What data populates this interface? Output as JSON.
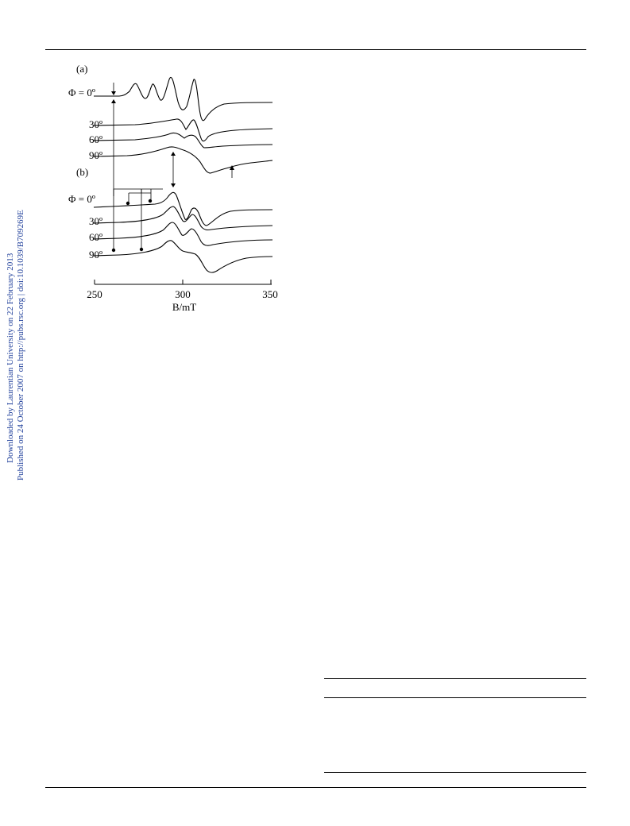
{
  "watermark": {
    "line1": "Downloaded by Laurentian University on 22 February 2013",
    "line2": "Published on 24 October 2007 on http://pubs.rsc.org | doi:10.1039/B709269E"
  },
  "figure": {
    "panel_a": {
      "label": "(a)",
      "phi_label": "Φ = 0º",
      "angle_labels": [
        "30º",
        "60º",
        "90º"
      ]
    },
    "panel_b": {
      "label": "(b)",
      "phi_label": "Φ = 0º",
      "angle_labels": [
        "30º",
        "60º",
        "90º"
      ]
    },
    "x_axis": {
      "label": "B/mT",
      "ticks": [
        "250",
        "300",
        "350"
      ]
    }
  },
  "chart_data": {
    "type": "line",
    "xlabel": "B/mT",
    "xlim": [
      250,
      350
    ],
    "x_ticks": [
      250,
      300,
      350
    ],
    "panels": [
      "(a)",
      "(b)"
    ],
    "series": [
      {
        "panel": "(a)",
        "name": "Φ = 0º"
      },
      {
        "panel": "(a)",
        "name": "30º"
      },
      {
        "panel": "(a)",
        "name": "60º"
      },
      {
        "panel": "(a)",
        "name": "90º"
      },
      {
        "panel": "(b)",
        "name": "Φ = 0º"
      },
      {
        "panel": "(b)",
        "name": "30º"
      },
      {
        "panel": "(b)",
        "name": "60º"
      },
      {
        "panel": "(b)",
        "name": "90º"
      }
    ]
  }
}
